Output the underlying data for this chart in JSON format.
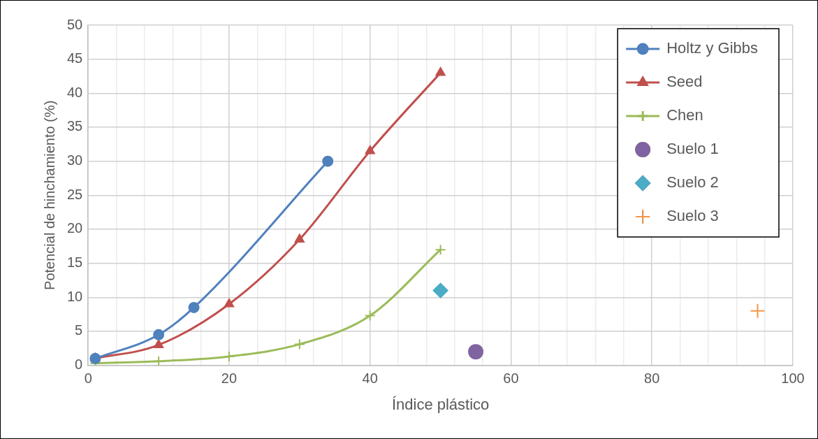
{
  "chart_data": {
    "type": "line",
    "xlabel": "Índice plástico",
    "ylabel": "Potencial de hinchamiento (%)",
    "xlim": [
      0,
      100
    ],
    "ylim": [
      0,
      50
    ],
    "xticks": [
      0,
      {
        "value": 4,
        "label": null
      },
      {
        "value": 8,
        "label": null
      },
      {
        "value": 12,
        "label": null
      },
      {
        "value": 16,
        "label": null
      },
      20,
      {
        "value": 24,
        "label": null
      },
      {
        "value": 28,
        "label": null
      },
      {
        "value": 32,
        "label": null
      },
      {
        "value": 36,
        "label": null
      },
      40,
      {
        "value": 44,
        "label": null
      },
      {
        "value": 48,
        "label": null
      },
      {
        "value": 52,
        "label": null
      },
      {
        "value": 56,
        "label": null
      },
      60,
      {
        "value": 64,
        "label": null
      },
      {
        "value": 68,
        "label": null
      },
      {
        "value": 72,
        "label": null
      },
      {
        "value": 76,
        "label": null
      },
      80,
      {
        "value": 84,
        "label": null
      },
      {
        "value": 88,
        "label": null
      },
      {
        "value": 92,
        "label": null
      },
      {
        "value": 96,
        "label": null
      },
      100
    ],
    "yticks": [
      0,
      5,
      10,
      15,
      20,
      25,
      30,
      35,
      40,
      45,
      50
    ],
    "grid": true,
    "legend": "top right",
    "series": [
      {
        "name": "Holtz y Gibbs",
        "marker": "circle",
        "color": "#4f81bd",
        "x": [
          1,
          10,
          15,
          34
        ],
        "values": [
          1,
          4.5,
          8.5,
          30
        ]
      },
      {
        "name": "Seed",
        "marker": "triangle",
        "color": "#c0504d",
        "x": [
          1,
          10,
          20,
          30,
          40,
          50
        ],
        "values": [
          1,
          3,
          9,
          18.5,
          31.5,
          43
        ]
      },
      {
        "name": "Chen",
        "marker": "cross",
        "color": "#9bbb59",
        "x": [
          1,
          10,
          20,
          30,
          40,
          50
        ],
        "values": [
          0.3,
          0.6,
          1.3,
          3.1,
          7.3,
          17
        ]
      },
      {
        "name": "Suelo 1",
        "type": "scatter",
        "marker": "circle",
        "color": "#8064a2",
        "x": [
          55
        ],
        "values": [
          2
        ]
      },
      {
        "name": "Suelo 2",
        "type": "scatter",
        "marker": "diamond",
        "color": "#4bacc6",
        "x": [
          50
        ],
        "values": [
          11
        ]
      },
      {
        "name": "Suelo 3",
        "type": "scatter",
        "marker": "cross",
        "color": "#f79646",
        "x": [
          95
        ],
        "values": [
          8
        ]
      }
    ]
  }
}
